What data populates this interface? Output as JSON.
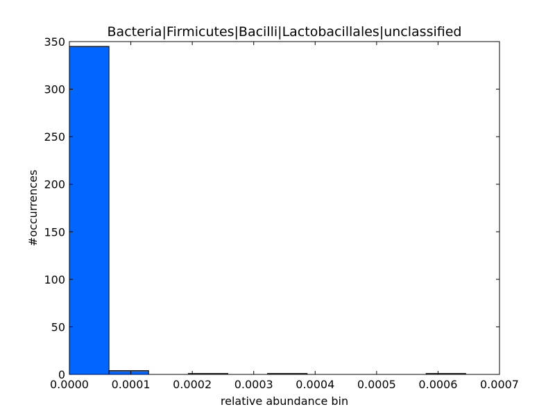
{
  "chart_data": {
    "type": "bar",
    "title": "Bacteria|Firmicutes|Bacilli|Lactobacillales|unclassified",
    "xlabel": "relative abundance bin",
    "ylabel": "#occurrences",
    "xlim": [
      0,
      0.0007
    ],
    "ylim": [
      0,
      350
    ],
    "xticks": [
      0,
      0.0001,
      0.0002,
      0.0003,
      0.0004,
      0.0005,
      0.0006,
      0.0007
    ],
    "xtick_labels": [
      "0.0000",
      "0.0001",
      "0.0002",
      "0.0003",
      "0.0004",
      "0.0005",
      "0.0006",
      "0.0007"
    ],
    "yticks": [
      0,
      50,
      100,
      150,
      200,
      250,
      300,
      350
    ],
    "ytick_labels": [
      "0",
      "50",
      "100",
      "150",
      "200",
      "250",
      "300",
      "350"
    ],
    "bins": [
      {
        "x0": 0.0,
        "x1": 6.45e-05,
        "count": 345
      },
      {
        "x0": 6.45e-05,
        "x1": 0.000129,
        "count": 4
      },
      {
        "x0": 0.000129,
        "x1": 0.0001935,
        "count": 0
      },
      {
        "x0": 0.0001935,
        "x1": 0.000258,
        "count": 1
      },
      {
        "x0": 0.000258,
        "x1": 0.0003225,
        "count": 0
      },
      {
        "x0": 0.0003225,
        "x1": 0.000387,
        "count": 1
      },
      {
        "x0": 0.000387,
        "x1": 0.0004515,
        "count": 0
      },
      {
        "x0": 0.0004515,
        "x1": 0.000516,
        "count": 0
      },
      {
        "x0": 0.000516,
        "x1": 0.0005805,
        "count": 0
      },
      {
        "x0": 0.0005805,
        "x1": 0.000645,
        "count": 1
      }
    ],
    "bar_color": "#0066ff",
    "edge_color": "#000000",
    "grid": false
  }
}
